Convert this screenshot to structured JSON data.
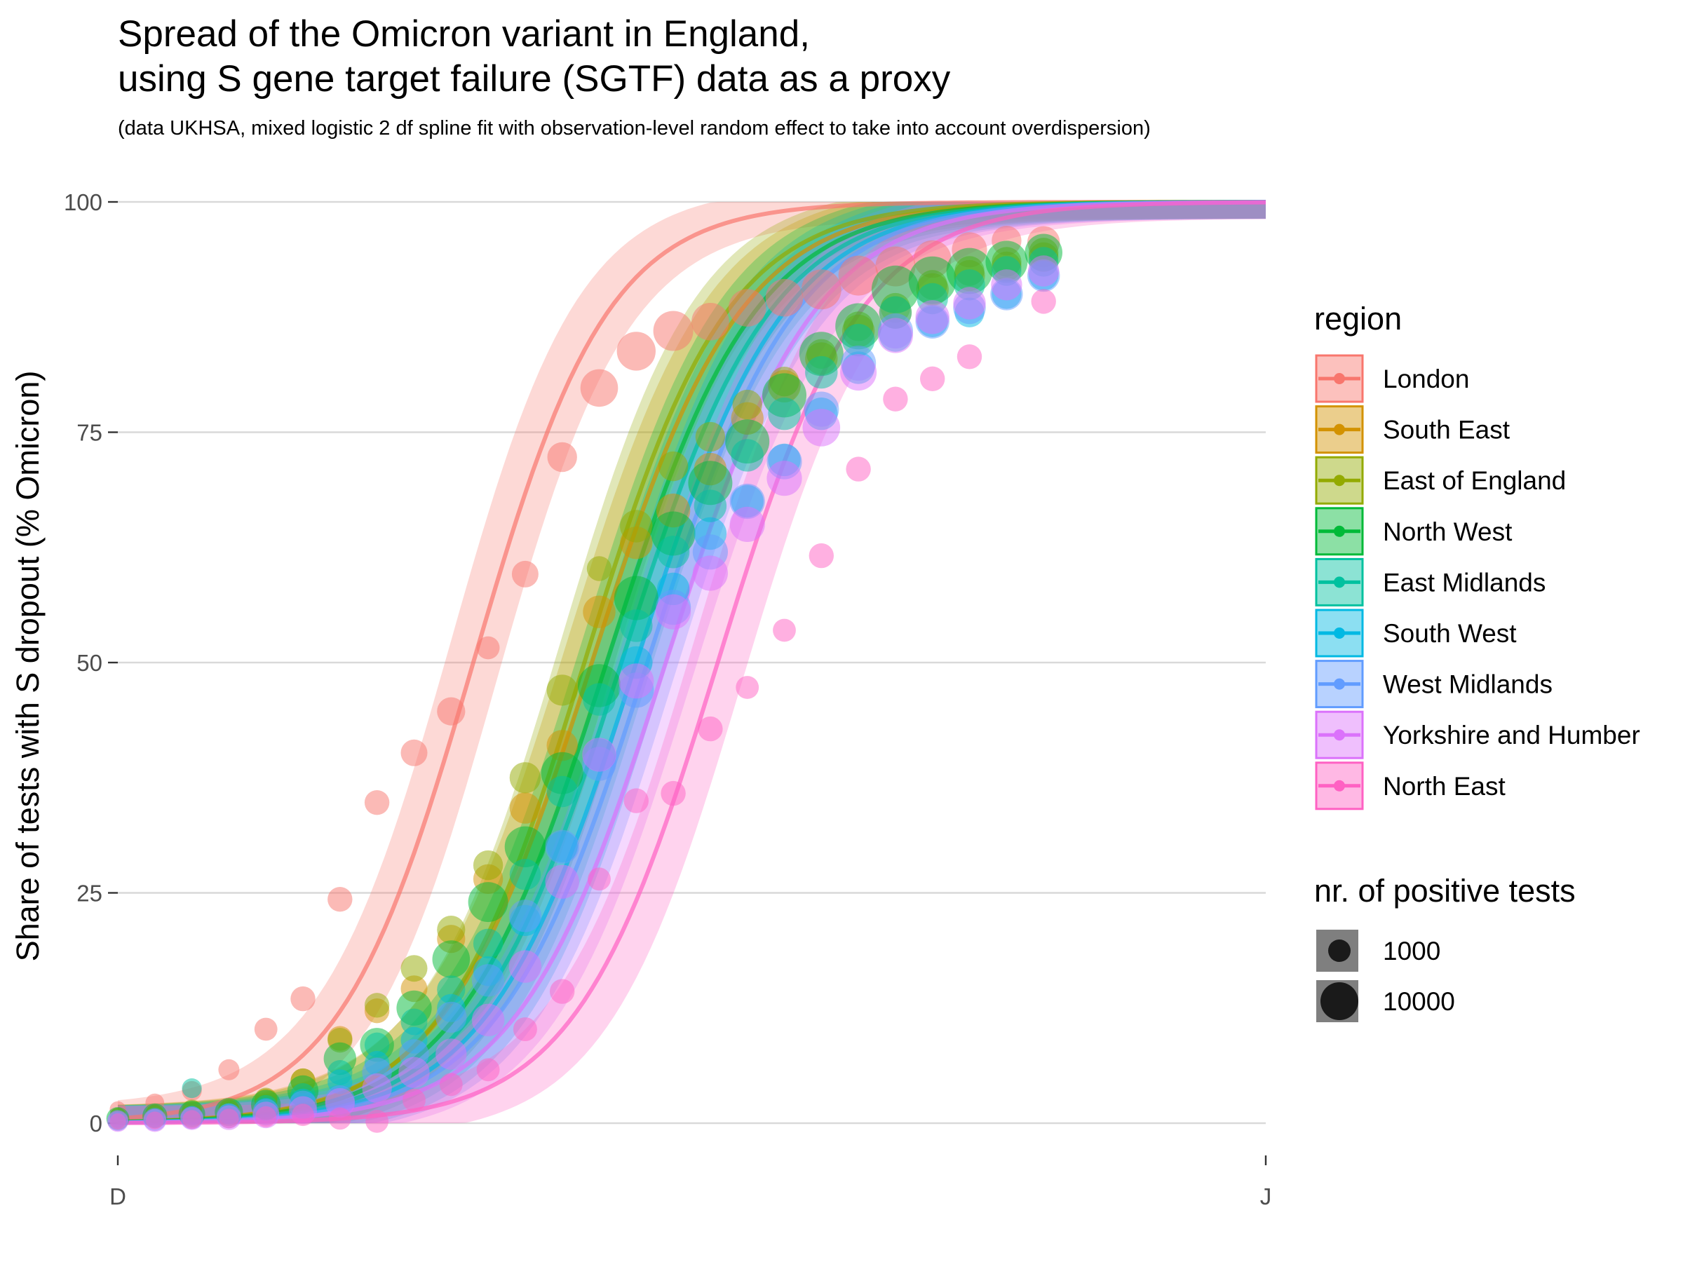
{
  "chart_data": {
    "type": "scatter",
    "title": "Spread of the Omicron variant in England,",
    "title_line2": "using S gene target failure (SGTF) data as a proxy",
    "subtitle": "(data UKHSA, mixed logistic 2 df spline fit with observation-level random effect to take into account overdispersion)",
    "ylabel": "Share of tests with S dropout (% Omicron)",
    "xlabel": "",
    "x_ticks": [
      "D",
      "J"
    ],
    "xlim": [
      0,
      31
    ],
    "ylim": [
      0,
      100
    ],
    "y_ticks": [
      "0",
      "25",
      "50",
      "75",
      "100"
    ],
    "y_tick_values": [
      0,
      25,
      50,
      75,
      100
    ],
    "grid": true,
    "legend_position": "right",
    "legend_title": "region",
    "size_legend_title": "nr. of positive tests",
    "size_legend": [
      {
        "label": "1000",
        "value": 1000
      },
      {
        "label": "10000",
        "value": 10000
      }
    ],
    "series": [
      {
        "name": "London",
        "color": "#F8766D",
        "midpoint": 9.6,
        "slope": 0.55,
        "points": [
          [
            0,
            1.5,
            1500
          ],
          [
            1,
            2.2,
            2000
          ],
          [
            2,
            3.5,
            2200
          ],
          [
            3,
            5.8,
            2500
          ],
          [
            4,
            10.2,
            3000
          ],
          [
            5,
            13.5,
            3500
          ],
          [
            6,
            24.3,
            3500
          ],
          [
            7,
            34.8,
            3500
          ],
          [
            8,
            40.2,
            4000
          ],
          [
            9,
            44.7,
            4500
          ],
          [
            10,
            51.6,
            3000
          ],
          [
            11,
            59.6,
            4000
          ],
          [
            12,
            72.3,
            5000
          ],
          [
            13,
            79.8,
            8000
          ],
          [
            14,
            83.8,
            8500
          ],
          [
            15,
            86.0,
            9000
          ],
          [
            16,
            87.0,
            8000
          ],
          [
            17,
            88.5,
            8000
          ],
          [
            18,
            89.6,
            8000
          ],
          [
            19,
            90.5,
            9000
          ],
          [
            20,
            92.0,
            9000
          ],
          [
            21,
            93.0,
            9000
          ],
          [
            22,
            93.8,
            8000
          ],
          [
            23,
            94.8,
            7000
          ],
          [
            24,
            95.8,
            5000
          ],
          [
            25,
            95.6,
            6000
          ]
        ]
      },
      {
        "name": "South East",
        "color": "#D39200",
        "midpoint": 12.8,
        "slope": 0.5,
        "points": [
          [
            0,
            0.8,
            1500
          ],
          [
            1,
            1.0,
            2000
          ],
          [
            2,
            1.2,
            2200
          ],
          [
            3,
            1.5,
            2500
          ],
          [
            4,
            2.5,
            3000
          ],
          [
            5,
            4.6,
            3500
          ],
          [
            6,
            9.2,
            3500
          ],
          [
            7,
            12.2,
            3500
          ],
          [
            8,
            14.6,
            4000
          ],
          [
            9,
            20.0,
            4500
          ],
          [
            10,
            26.5,
            5000
          ],
          [
            11,
            34.2,
            5500
          ],
          [
            12,
            41.0,
            5500
          ],
          [
            13,
            55.5,
            6000
          ],
          [
            14,
            63.0,
            6000
          ],
          [
            15,
            66.5,
            6500
          ],
          [
            16,
            71.0,
            6000
          ],
          [
            17,
            76.5,
            6000
          ],
          [
            18,
            80.0,
            6000
          ],
          [
            19,
            83.0,
            6000
          ],
          [
            20,
            86.0,
            6000
          ],
          [
            21,
            88.0,
            6000
          ],
          [
            22,
            90.5,
            6000
          ],
          [
            23,
            92.0,
            5500
          ],
          [
            24,
            93.0,
            5000
          ],
          [
            25,
            94.0,
            5000
          ]
        ]
      },
      {
        "name": "East of England",
        "color": "#93AA00",
        "midpoint": 12.6,
        "slope": 0.52,
        "points": [
          [
            0,
            0.8,
            1500
          ],
          [
            1,
            1.0,
            2000
          ],
          [
            2,
            1.5,
            2200
          ],
          [
            3,
            1.4,
            2500
          ],
          [
            4,
            2.6,
            3000
          ],
          [
            5,
            4.6,
            3500
          ],
          [
            6,
            9.0,
            3500
          ],
          [
            7,
            12.8,
            3500
          ],
          [
            8,
            16.8,
            4000
          ],
          [
            9,
            21.0,
            4500
          ],
          [
            10,
            28.0,
            5000
          ],
          [
            11,
            37.5,
            5500
          ],
          [
            12,
            47.0,
            5500
          ],
          [
            13,
            60.2,
            3500
          ],
          [
            14,
            64.8,
            6000
          ],
          [
            15,
            71.3,
            5000
          ],
          [
            16,
            74.5,
            5000
          ],
          [
            17,
            78.0,
            5000
          ],
          [
            18,
            80.5,
            5000
          ],
          [
            19,
            83.5,
            5000
          ],
          [
            20,
            86.5,
            5000
          ],
          [
            21,
            88.5,
            5000
          ],
          [
            22,
            91.0,
            5000
          ],
          [
            23,
            92.5,
            5000
          ],
          [
            24,
            93.5,
            5000
          ],
          [
            25,
            94.5,
            5000
          ]
        ]
      },
      {
        "name": "North West",
        "color": "#00BA38",
        "midpoint": 13.2,
        "slope": 0.5,
        "points": [
          [
            0,
            0.5,
            3000
          ],
          [
            1,
            0.8,
            3500
          ],
          [
            2,
            1.0,
            4000
          ],
          [
            3,
            1.2,
            4500
          ],
          [
            4,
            2.0,
            5000
          ],
          [
            5,
            3.5,
            5500
          ],
          [
            6,
            7.0,
            6000
          ],
          [
            7,
            8.5,
            6500
          ],
          [
            8,
            12.5,
            7000
          ],
          [
            9,
            17.8,
            8000
          ],
          [
            10,
            24.0,
            9000
          ],
          [
            11,
            30.0,
            9500
          ],
          [
            12,
            38.0,
            10000
          ],
          [
            13,
            47.5,
            10500
          ],
          [
            14,
            57.0,
            11000
          ],
          [
            15,
            64.0,
            11000
          ],
          [
            16,
            69.5,
            11000
          ],
          [
            17,
            74.0,
            11000
          ],
          [
            18,
            79.0,
            11000
          ],
          [
            19,
            83.5,
            11000
          ],
          [
            20,
            86.5,
            12000
          ],
          [
            21,
            90.5,
            14000
          ],
          [
            22,
            91.5,
            13000
          ],
          [
            23,
            92.5,
            12000
          ],
          [
            24,
            93.5,
            10000
          ],
          [
            25,
            94.5,
            8000
          ]
        ]
      },
      {
        "name": "East Midlands",
        "color": "#00C19F",
        "midpoint": 13.6,
        "slope": 0.5,
        "points": [
          [
            0,
            0.4,
            1500
          ],
          [
            1,
            0.6,
            2000
          ],
          [
            2,
            3.8,
            2200
          ],
          [
            3,
            1.0,
            2500
          ],
          [
            4,
            1.8,
            3000
          ],
          [
            5,
            3.0,
            3500
          ],
          [
            6,
            5.5,
            3500
          ],
          [
            7,
            8.5,
            3500
          ],
          [
            8,
            11.0,
            4000
          ],
          [
            9,
            14.5,
            4500
          ],
          [
            10,
            19.5,
            5000
          ],
          [
            11,
            27.0,
            5500
          ],
          [
            12,
            36.0,
            5500
          ],
          [
            13,
            46.0,
            6000
          ],
          [
            14,
            54.0,
            6000
          ],
          [
            15,
            62.0,
            6000
          ],
          [
            16,
            67.0,
            6000
          ],
          [
            17,
            72.5,
            6000
          ],
          [
            18,
            77.0,
            6000
          ],
          [
            19,
            81.5,
            6000
          ],
          [
            20,
            85.0,
            6000
          ],
          [
            21,
            88.0,
            6000
          ],
          [
            22,
            89.5,
            5500
          ],
          [
            23,
            91.0,
            5500
          ],
          [
            24,
            92.5,
            5000
          ],
          [
            25,
            93.5,
            5000
          ]
        ]
      },
      {
        "name": "South West",
        "color": "#00B9E3",
        "midpoint": 14.0,
        "slope": 0.5,
        "points": [
          [
            0,
            0.3,
            1500
          ],
          [
            1,
            0.5,
            2000
          ],
          [
            2,
            0.8,
            2200
          ],
          [
            3,
            1.0,
            2500
          ],
          [
            4,
            1.5,
            3000
          ],
          [
            5,
            2.4,
            3500
          ],
          [
            6,
            4.5,
            3500
          ],
          [
            7,
            6.5,
            3500
          ],
          [
            8,
            9.0,
            4000
          ],
          [
            9,
            12.5,
            4500
          ],
          [
            10,
            16.5,
            5000
          ],
          [
            11,
            22.0,
            5500
          ],
          [
            12,
            30.0,
            5500
          ],
          [
            13,
            40.0,
            6000
          ],
          [
            14,
            50.0,
            6000
          ],
          [
            15,
            58.0,
            6000
          ],
          [
            16,
            64.0,
            6000
          ],
          [
            17,
            67.5,
            6000
          ],
          [
            18,
            72.0,
            6000
          ],
          [
            19,
            77.0,
            6000
          ],
          [
            20,
            82.0,
            6000
          ],
          [
            21,
            85.5,
            6000
          ],
          [
            22,
            87.0,
            5500
          ],
          [
            23,
            88.0,
            5000
          ],
          [
            24,
            90.0,
            5000
          ],
          [
            25,
            92.0,
            5000
          ]
        ]
      },
      {
        "name": "West Midlands",
        "color": "#619CFF",
        "midpoint": 14.3,
        "slope": 0.5,
        "points": [
          [
            0,
            0.3,
            2500
          ],
          [
            1,
            0.4,
            3000
          ],
          [
            2,
            0.6,
            3000
          ],
          [
            3,
            0.8,
            3500
          ],
          [
            4,
            1.2,
            4000
          ],
          [
            5,
            2.0,
            4500
          ],
          [
            6,
            2.5,
            5000
          ],
          [
            7,
            5.5,
            5000
          ],
          [
            8,
            7.5,
            5000
          ],
          [
            9,
            11.5,
            5500
          ],
          [
            10,
            15.5,
            6000
          ],
          [
            11,
            22.5,
            6000
          ],
          [
            12,
            30.0,
            6500
          ],
          [
            13,
            39.0,
            6500
          ],
          [
            14,
            47.0,
            7000
          ],
          [
            15,
            56.0,
            7000
          ],
          [
            16,
            62.0,
            7000
          ],
          [
            17,
            67.5,
            7000
          ],
          [
            18,
            71.8,
            7000
          ],
          [
            19,
            77.5,
            7000
          ],
          [
            20,
            82.5,
            7000
          ],
          [
            21,
            86.0,
            7000
          ],
          [
            22,
            87.0,
            6500
          ],
          [
            23,
            88.5,
            6000
          ],
          [
            24,
            90.0,
            6000
          ],
          [
            25,
            92.0,
            6000
          ]
        ]
      },
      {
        "name": "Yorkshire and Humber",
        "color": "#DB72FB",
        "midpoint": 14.8,
        "slope": 0.5,
        "points": [
          [
            0,
            0.2,
            2500
          ],
          [
            1,
            0.3,
            3000
          ],
          [
            2,
            0.5,
            3000
          ],
          [
            3,
            0.6,
            3500
          ],
          [
            4,
            0.9,
            4000
          ],
          [
            5,
            1.4,
            4500
          ],
          [
            6,
            2.2,
            5000
          ],
          [
            7,
            3.8,
            5000
          ],
          [
            8,
            5.5,
            5500
          ],
          [
            9,
            7.5,
            5500
          ],
          [
            10,
            11.2,
            6000
          ],
          [
            11,
            17.0,
            6000
          ],
          [
            12,
            26.2,
            6500
          ],
          [
            13,
            40.0,
            6500
          ],
          [
            14,
            48.0,
            7000
          ],
          [
            15,
            55.5,
            7000
          ],
          [
            16,
            59.7,
            7000
          ],
          [
            17,
            65.0,
            7000
          ],
          [
            18,
            70.0,
            7000
          ],
          [
            19,
            75.5,
            8000
          ],
          [
            20,
            81.5,
            7500
          ],
          [
            21,
            85.5,
            7000
          ],
          [
            22,
            87.5,
            6500
          ],
          [
            23,
            89.0,
            6000
          ],
          [
            24,
            91.0,
            5500
          ],
          [
            25,
            92.5,
            5500
          ]
        ]
      },
      {
        "name": "North East",
        "color": "#FF61C3",
        "midpoint": 16.2,
        "slope": 0.52,
        "points": [
          [
            0,
            0.2,
            1500
          ],
          [
            1,
            0.3,
            1800
          ],
          [
            2,
            0.4,
            2000
          ],
          [
            3,
            0.5,
            2200
          ],
          [
            4,
            0.7,
            2500
          ],
          [
            5,
            0.9,
            2800
          ],
          [
            6,
            0.5,
            2800
          ],
          [
            7,
            0.2,
            3000
          ],
          [
            8,
            2.5,
            3000
          ],
          [
            9,
            4.2,
            3000
          ],
          [
            10,
            5.8,
            3000
          ],
          [
            11,
            10.2,
            3200
          ],
          [
            12,
            14.3,
            3500
          ],
          [
            13,
            26.5,
            3000
          ],
          [
            14,
            35.0,
            3500
          ],
          [
            15,
            35.8,
            3500
          ],
          [
            16,
            42.8,
            3500
          ],
          [
            17,
            47.3,
            3000
          ],
          [
            18,
            53.5,
            3000
          ],
          [
            19,
            61.6,
            3500
          ],
          [
            20,
            71.0,
            3500
          ],
          [
            21,
            78.6,
            3500
          ],
          [
            22,
            80.8,
            3500
          ],
          [
            23,
            83.2,
            3500
          ],
          [
            25,
            89.2,
            3500
          ]
        ]
      }
    ]
  }
}
